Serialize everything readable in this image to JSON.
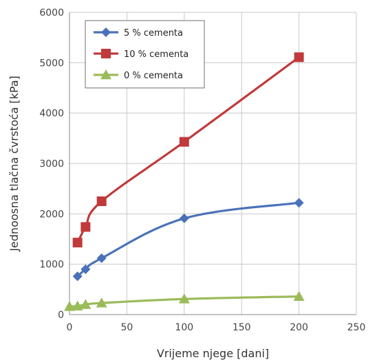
{
  "chart_data": {
    "type": "line",
    "title": "",
    "xlabel": "Vrijeme njege [dani]",
    "ylabel": "Jednoosna tlačna čvrstoća [kPa]",
    "xlim": [
      0,
      250
    ],
    "ylim": [
      0,
      6000
    ],
    "xticks": [
      0,
      50,
      100,
      150,
      200,
      250
    ],
    "yticks": [
      0,
      1000,
      2000,
      3000,
      4000,
      5000,
      6000
    ],
    "grid": true,
    "legend_position": "top-left",
    "series": [
      {
        "name": "5 % cementa",
        "color": "#4a72b8",
        "marker": "diamond",
        "x": [
          7,
          14,
          28,
          100,
          200
        ],
        "y": [
          760,
          900,
          1120,
          1910,
          2220
        ]
      },
      {
        "name": "10 % cementa",
        "color": "#c0393b",
        "marker": "square",
        "x": [
          7,
          14,
          28,
          100,
          200
        ],
        "y": [
          1430,
          1740,
          2250,
          3430,
          5110
        ]
      },
      {
        "name": "0 % cementa",
        "color": "#9bbb59",
        "marker": "triangle",
        "x": [
          0,
          7,
          14,
          28,
          100,
          200
        ],
        "y": [
          160,
          170,
          200,
          230,
          310,
          360
        ]
      }
    ]
  }
}
